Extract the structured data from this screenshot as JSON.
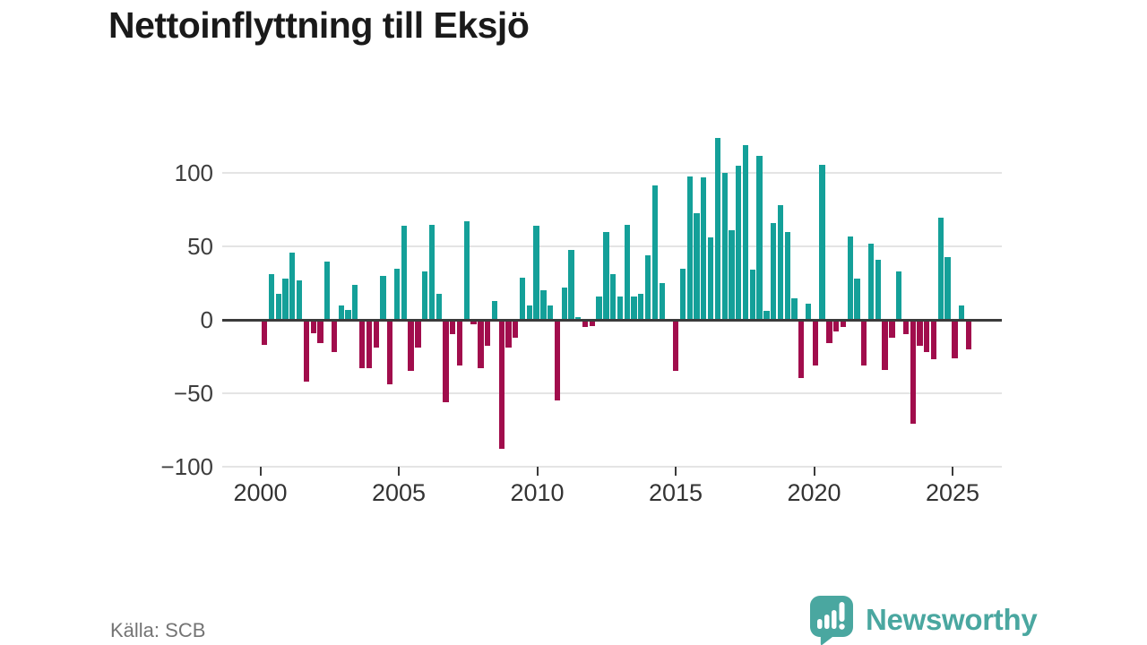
{
  "title": "Nettoinflyttning till Eksjö",
  "source": "Källa: SCB",
  "logo": {
    "text": "Newsworthy"
  },
  "colors": {
    "positive": "#14a099",
    "negative": "#a10d4c",
    "grid": "#e4e4e4",
    "zero_line": "#3b3b3b",
    "axis_text": "#3d3d3d",
    "source_text": "#747474",
    "brand": "#4aa7a0"
  },
  "chart_data": {
    "type": "bar",
    "title": "Nettoinflyttning till Eksjö",
    "period": "quarterly",
    "x_start_year": 2000,
    "x_start_quarter": 1,
    "x_ticks": [
      2000,
      2005,
      2010,
      2015,
      2020,
      2025
    ],
    "x_tick_labels": [
      "2000",
      "2005",
      "2010",
      "2015",
      "2020",
      "2025"
    ],
    "y_ticks": [
      100,
      50,
      0,
      -50,
      -100
    ],
    "y_tick_labels": [
      "100",
      "50",
      "0",
      "−50",
      "−100"
    ],
    "ylim": [
      -100,
      130
    ],
    "grid": true,
    "legend": null,
    "values": [
      -17,
      31,
      18,
      28,
      46,
      27,
      -42,
      -9,
      -16,
      40,
      -22,
      10,
      7,
      24,
      -33,
      -33,
      -19,
      30,
      -44,
      35,
      64,
      -35,
      -19,
      33,
      65,
      18,
      -56,
      -10,
      -31,
      67,
      -3,
      -33,
      -18,
      13,
      -88,
      -19,
      -12,
      29,
      10,
      64,
      20,
      10,
      -55,
      22,
      48,
      2,
      -5,
      -4,
      16,
      60,
      31,
      16,
      65,
      16,
      18,
      44,
      92,
      25,
      0,
      -35,
      35,
      98,
      73,
      97,
      56,
      124,
      100,
      61,
      105,
      119,
      34,
      112,
      6,
      66,
      78,
      60,
      15,
      -40,
      11,
      -31,
      106,
      -16,
      -8,
      -5,
      57,
      28,
      -31,
      52,
      41,
      -34,
      -12,
      33,
      -10,
      -71,
      -18,
      -22,
      -27,
      70,
      43,
      -26,
      10,
      -20
    ]
  }
}
